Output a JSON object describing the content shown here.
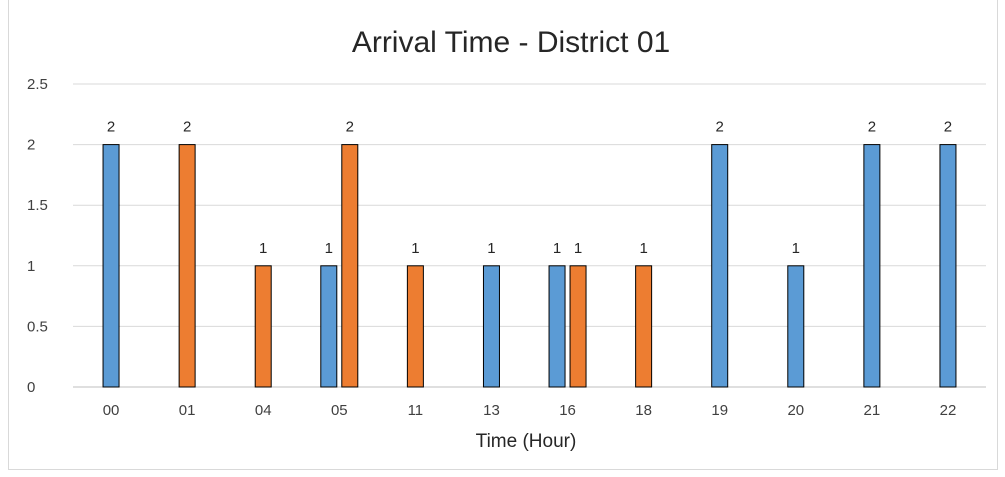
{
  "chart_data": {
    "type": "bar",
    "title": "Arrival Time - District 01",
    "xlabel": "Time (Hour)",
    "ylabel": "",
    "ylim": [
      0,
      2.5
    ],
    "yticks": [
      0,
      0.5,
      1,
      1.5,
      2,
      2.5
    ],
    "ytick_labels": [
      "0",
      "0.5",
      "1",
      "1.5",
      "2",
      "2.5"
    ],
    "categories": [
      "00",
      "01",
      "04",
      "05",
      "11",
      "13",
      "16",
      "18",
      "19",
      "20",
      "21",
      "22"
    ],
    "series": [
      {
        "color": "#5b9bd5",
        "values": [
          2,
          null,
          null,
          1,
          null,
          1,
          1,
          null,
          2,
          1,
          2,
          2
        ]
      },
      {
        "color": "#ed7d31",
        "values": [
          null,
          2,
          1,
          2,
          1,
          null,
          1,
          1,
          null,
          null,
          null,
          null
        ]
      }
    ],
    "grid": true,
    "legend": "none"
  }
}
